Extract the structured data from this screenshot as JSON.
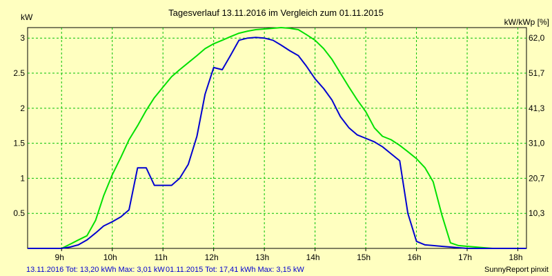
{
  "chart_data": {
    "type": "line",
    "title": "Tagesverlauf 13.11.2016 im Vergleich zum 01.11.2015",
    "ylabel": "kW",
    "ylabel_right": "kW/kWp [%]",
    "xlim": [
      8.33,
      18.17
    ],
    "ylim": [
      0,
      3.15
    ],
    "grid": true,
    "x_ticks": [
      {
        "value": 9,
        "label": "9h"
      },
      {
        "value": 10,
        "label": "10h"
      },
      {
        "value": 11,
        "label": "11h"
      },
      {
        "value": 12,
        "label": "12h"
      },
      {
        "value": 13,
        "label": "13h"
      },
      {
        "value": 14,
        "label": "14h"
      },
      {
        "value": 15,
        "label": "15h"
      },
      {
        "value": 16,
        "label": "16h"
      },
      {
        "value": 17,
        "label": "17h"
      },
      {
        "value": 18,
        "label": "18h"
      }
    ],
    "y_ticks": [
      {
        "value": 0.5,
        "label": "0.5"
      },
      {
        "value": 1,
        "label": "1"
      },
      {
        "value": 1.5,
        "label": "1.5"
      },
      {
        "value": 2,
        "label": "2"
      },
      {
        "value": 2.5,
        "label": "2.5"
      },
      {
        "value": 3,
        "label": "3"
      }
    ],
    "y_ticks_right": [
      {
        "value": 0.5,
        "label": "10,3"
      },
      {
        "value": 1,
        "label": "20,7"
      },
      {
        "value": 1.5,
        "label": "31,0"
      },
      {
        "value": 2,
        "label": "41,3"
      },
      {
        "value": 2.5,
        "label": "51,7"
      },
      {
        "value": 3,
        "label": "62,0"
      }
    ],
    "series": [
      {
        "name": "13.11.2016",
        "color": "#0000d0",
        "x": [
          8.33,
          8.67,
          9.0,
          9.17,
          9.33,
          9.5,
          9.67,
          9.83,
          10.0,
          10.17,
          10.33,
          10.5,
          10.67,
          10.83,
          11.0,
          11.17,
          11.33,
          11.5,
          11.67,
          11.83,
          12.0,
          12.17,
          12.33,
          12.5,
          12.67,
          12.83,
          13.0,
          13.17,
          13.33,
          13.5,
          13.67,
          13.83,
          14.0,
          14.17,
          14.33,
          14.5,
          14.67,
          14.83,
          15.0,
          15.17,
          15.33,
          15.5,
          15.67,
          15.83,
          16.0,
          16.17,
          16.33,
          16.5,
          16.67,
          16.83,
          17.0,
          17.17,
          17.33,
          17.5,
          17.67,
          17.83,
          18.0,
          18.17
        ],
        "y": [
          0.0,
          0.0,
          0.0,
          0.02,
          0.05,
          0.12,
          0.22,
          0.32,
          0.38,
          0.45,
          0.55,
          1.15,
          1.15,
          0.9,
          0.9,
          0.9,
          1.0,
          1.2,
          1.6,
          2.2,
          2.58,
          2.55,
          2.75,
          2.97,
          3.0,
          3.01,
          3.0,
          2.97,
          2.9,
          2.82,
          2.75,
          2.6,
          2.42,
          2.28,
          2.12,
          1.88,
          1.72,
          1.62,
          1.57,
          1.52,
          1.45,
          1.35,
          1.25,
          0.5,
          0.1,
          0.05,
          0.04,
          0.03,
          0.02,
          0.01,
          0.0,
          0.0,
          0.0,
          0.0,
          0.0,
          0.0,
          0.0,
          0.0
        ]
      },
      {
        "name": "01.11.2015",
        "color": "#00e000",
        "x": [
          8.33,
          8.67,
          9.0,
          9.17,
          9.33,
          9.5,
          9.67,
          9.83,
          10.0,
          10.17,
          10.33,
          10.5,
          10.67,
          10.83,
          11.0,
          11.17,
          11.33,
          11.5,
          11.67,
          11.83,
          12.0,
          12.17,
          12.33,
          12.5,
          12.67,
          12.83,
          13.0,
          13.17,
          13.33,
          13.5,
          13.67,
          13.83,
          14.0,
          14.17,
          14.33,
          14.5,
          14.67,
          14.83,
          15.0,
          15.17,
          15.33,
          15.5,
          15.67,
          15.83,
          16.0,
          16.17,
          16.33,
          16.5,
          16.67,
          16.83,
          17.0,
          17.17,
          17.33,
          17.5,
          17.67,
          17.83,
          18.0,
          18.17
        ],
        "y": [
          0.0,
          0.0,
          0.0,
          0.06,
          0.12,
          0.18,
          0.4,
          0.75,
          1.05,
          1.3,
          1.55,
          1.75,
          1.97,
          2.15,
          2.3,
          2.45,
          2.55,
          2.65,
          2.75,
          2.85,
          2.92,
          2.97,
          3.02,
          3.07,
          3.1,
          3.12,
          3.13,
          3.14,
          3.15,
          3.14,
          3.12,
          3.05,
          2.97,
          2.85,
          2.7,
          2.5,
          2.3,
          2.12,
          1.95,
          1.72,
          1.6,
          1.55,
          1.47,
          1.38,
          1.28,
          1.15,
          0.95,
          0.48,
          0.08,
          0.04,
          0.03,
          0.02,
          0.01,
          0.0,
          0.0,
          0.0,
          0.0,
          0.0
        ]
      }
    ]
  },
  "footer": {
    "series1_text": "13.11.2016 Tot: 13,20 kWh Max: 3,01 kW",
    "series2_text": "01.11.2015 Tot: 17,41 kWh Max: 3,15 kW",
    "brand": "SunnyReport pinxit"
  }
}
